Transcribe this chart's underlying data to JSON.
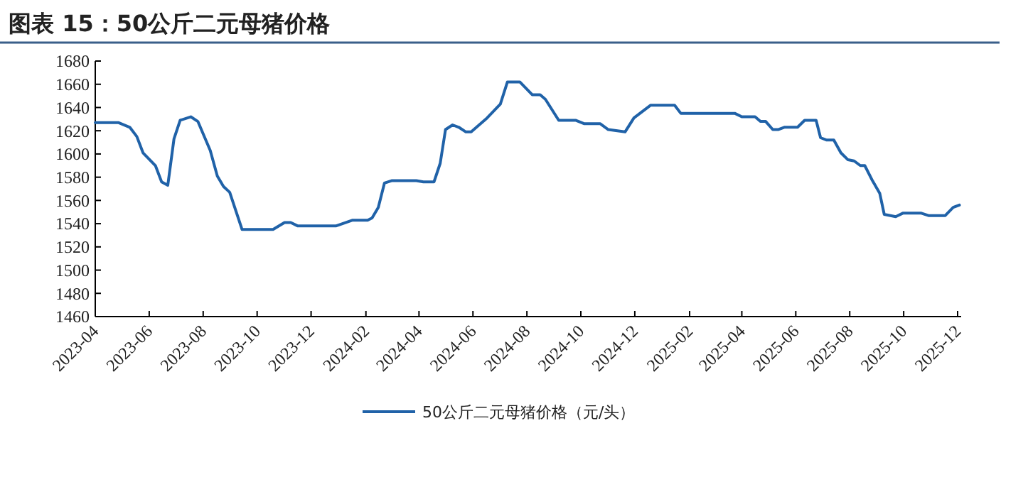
{
  "chart_data": {
    "type": "line",
    "title": "图表 15：50公斤二元母猪价格",
    "x": [
      "2023-04-01",
      "2023-04-27",
      "2023-05-10",
      "2023-05-18",
      "2023-05-25",
      "2023-06-08",
      "2023-06-15",
      "2023-06-22",
      "2023-06-29",
      "2023-07-06",
      "2023-07-18",
      "2023-07-26",
      "2023-08-09",
      "2023-08-17",
      "2023-08-24",
      "2023-08-31",
      "2023-09-14",
      "2023-10-19",
      "2023-11-01",
      "2023-11-08",
      "2023-11-16",
      "2023-12-29",
      "2024-01-17",
      "2024-02-03",
      "2024-02-08",
      "2024-02-15",
      "2024-02-22",
      "2024-03-01",
      "2024-03-29",
      "2024-04-06",
      "2024-04-18",
      "2024-04-25",
      "2024-05-01",
      "2024-05-09",
      "2024-05-16",
      "2024-05-24",
      "2024-05-30",
      "2024-06-17",
      "2024-07-02",
      "2024-07-10",
      "2024-07-24",
      "2024-08-07",
      "2024-08-16",
      "2024-08-22",
      "2024-09-06",
      "2024-09-25",
      "2024-10-05",
      "2024-10-23",
      "2024-11-01",
      "2024-11-20",
      "2024-11-30",
      "2024-12-19",
      "2025-01-15",
      "2025-01-22",
      "2025-03-24",
      "2025-04-01",
      "2025-04-16",
      "2025-04-22",
      "2025-04-28",
      "2025-05-06",
      "2025-05-12",
      "2025-05-19",
      "2025-06-03",
      "2025-06-11",
      "2025-06-24",
      "2025-06-29",
      "2025-07-06",
      "2025-07-14",
      "2025-07-22",
      "2025-07-30",
      "2025-08-06",
      "2025-08-13",
      "2025-08-18",
      "2025-08-26",
      "2025-09-04",
      "2025-09-09",
      "2025-09-22",
      "2025-09-30",
      "2025-10-21",
      "2025-10-29",
      "2025-11-17",
      "2025-11-26",
      "2025-12-03"
    ],
    "series": [
      {
        "name": "50公斤二元母猪价格（元/头）",
        "color": "#2062a8",
        "values": [
          1627,
          1627,
          1623,
          1615,
          1601,
          1590,
          1576,
          1573,
          1613,
          1629,
          1632,
          1628,
          1603,
          1581,
          1572,
          1567,
          1535,
          1535,
          1541,
          1541,
          1538,
          1538,
          1543,
          1543,
          1545,
          1554,
          1575,
          1577,
          1577,
          1576,
          1576,
          1592,
          1621,
          1625,
          1623,
          1619,
          1619,
          1631,
          1643,
          1662,
          1662,
          1651,
          1651,
          1647,
          1629,
          1629,
          1626,
          1626,
          1621,
          1619,
          1631,
          1642,
          1642,
          1635,
          1635,
          1632,
          1632,
          1628,
          1628,
          1621,
          1621,
          1623,
          1623,
          1629,
          1629,
          1614,
          1612,
          1612,
          1601,
          1595,
          1594,
          1590,
          1590,
          1578,
          1566,
          1548,
          1546,
          1549,
          1549,
          1547,
          1547,
          1554,
          1556
        ]
      }
    ],
    "xlim": [
      "2023-04-01",
      "2025-12-05"
    ],
    "xticks": [
      {
        "value": "2023-04-01",
        "label": "2023-04"
      },
      {
        "value": "2023-06-01",
        "label": "2023-06"
      },
      {
        "value": "2023-08-01",
        "label": "2023-08"
      },
      {
        "value": "2023-10-01",
        "label": "2023-10"
      },
      {
        "value": "2023-12-01",
        "label": "2023-12"
      },
      {
        "value": "2024-02-01",
        "label": "2024-02"
      },
      {
        "value": "2024-04-01",
        "label": "2024-04"
      },
      {
        "value": "2024-06-01",
        "label": "2024-06"
      },
      {
        "value": "2024-08-01",
        "label": "2024-08"
      },
      {
        "value": "2024-10-01",
        "label": "2024-10"
      },
      {
        "value": "2024-12-01",
        "label": "2024-12"
      },
      {
        "value": "2025-02-01",
        "label": "2025-02"
      },
      {
        "value": "2025-04-01",
        "label": "2025-04"
      },
      {
        "value": "2025-06-01",
        "label": "2025-06"
      },
      {
        "value": "2025-08-01",
        "label": "2025-08"
      },
      {
        "value": "2025-10-01",
        "label": "2025-10"
      },
      {
        "value": "2025-12-01",
        "label": "2025-12"
      }
    ],
    "ylim": [
      1460,
      1680
    ],
    "yticks": [
      1460,
      1480,
      1500,
      1520,
      1540,
      1560,
      1580,
      1600,
      1620,
      1640,
      1660,
      1680
    ],
    "grid": false,
    "legend": "bottom",
    "marker": "none",
    "line_style": "solid"
  }
}
